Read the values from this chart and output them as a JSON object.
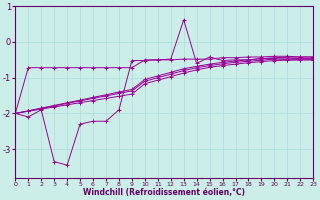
{
  "xlabel": "Windchill (Refroidissement éolien,°C)",
  "background_color": "#cceee8",
  "grid_color": "#aadddd",
  "line_color": "#990099",
  "x": [
    0,
    1,
    2,
    3,
    4,
    5,
    6,
    7,
    8,
    9,
    10,
    11,
    12,
    13,
    14,
    15,
    16,
    17,
    18,
    19,
    20,
    21,
    22,
    23
  ],
  "top_flat": [
    -2.0,
    -0.72,
    -0.72,
    -0.72,
    -0.72,
    -0.72,
    -0.72,
    -0.72,
    -0.72,
    -0.72,
    -0.5,
    -0.5,
    -0.5,
    -0.48,
    -0.48,
    -0.48,
    -0.44,
    -0.44,
    -0.42,
    -0.42,
    -0.4,
    -0.4,
    -0.42,
    -0.42
  ],
  "bottom_wiggly": [
    -2.0,
    -2.1,
    -1.9,
    -3.35,
    -3.45,
    -2.3,
    -2.22,
    -2.22,
    -1.9,
    -0.52,
    -0.52,
    -0.5,
    -0.48,
    0.62,
    -0.6,
    -0.42,
    -0.52,
    -0.5,
    -0.5,
    -0.46,
    -0.46,
    -0.5,
    -0.5,
    -0.5
  ],
  "straight1": [
    -2.0,
    -1.93,
    -1.85,
    -1.78,
    -1.7,
    -1.63,
    -1.55,
    -1.48,
    -1.4,
    -1.33,
    -1.05,
    -0.95,
    -0.85,
    -0.75,
    -0.68,
    -0.62,
    -0.57,
    -0.53,
    -0.5,
    -0.47,
    -0.44,
    -0.43,
    -0.42,
    -0.42
  ],
  "straight2": [
    -2.0,
    -1.93,
    -1.86,
    -1.79,
    -1.72,
    -1.65,
    -1.58,
    -1.51,
    -1.44,
    -1.37,
    -1.1,
    -1.0,
    -0.9,
    -0.8,
    -0.72,
    -0.66,
    -0.61,
    -0.57,
    -0.54,
    -0.51,
    -0.48,
    -0.47,
    -0.46,
    -0.46
  ],
  "straight3": [
    -2.0,
    -1.94,
    -1.88,
    -1.82,
    -1.76,
    -1.7,
    -1.64,
    -1.58,
    -1.52,
    -1.46,
    -1.17,
    -1.07,
    -0.97,
    -0.87,
    -0.78,
    -0.71,
    -0.66,
    -0.62,
    -0.58,
    -0.55,
    -0.52,
    -0.51,
    -0.5,
    -0.5
  ],
  "ylim": [
    -3.8,
    1.0
  ],
  "xlim": [
    0,
    23
  ],
  "yticks": [
    1,
    0,
    -1,
    -2,
    -3
  ],
  "xticks": [
    0,
    1,
    2,
    3,
    4,
    5,
    6,
    7,
    8,
    9,
    10,
    11,
    12,
    13,
    14,
    15,
    16,
    17,
    18,
    19,
    20,
    21,
    22,
    23
  ]
}
